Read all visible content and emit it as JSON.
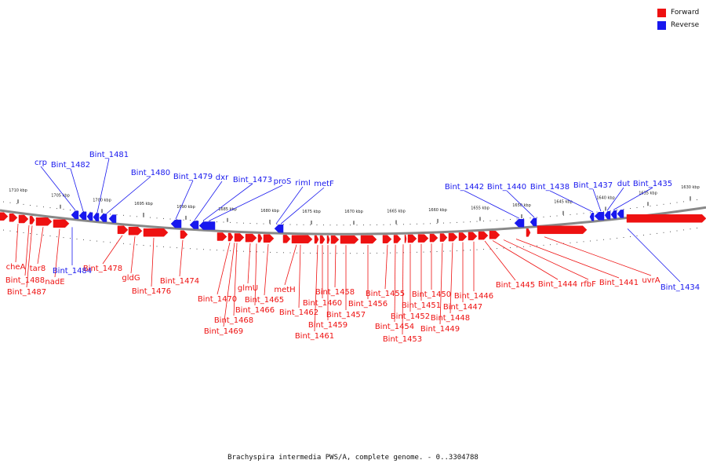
{
  "colors": {
    "forward": "#ee1111",
    "reverse": "#1818ee",
    "backbone": "#888888"
  },
  "legend": [
    {
      "label": "Forward",
      "color": "#ee1111"
    },
    {
      "label": "Reverse",
      "color": "#1818ee"
    }
  ],
  "caption": "Brachyspira intermedia PWS/A, complete genome. - 0..3304788",
  "ticks": [
    "1710 kbp",
    "1705 kbp",
    "1700 kbp",
    "1695 kbp",
    "1690 kbp",
    "1685 kbp",
    "1680 kbp",
    "1675 kbp",
    "1670 kbp",
    "1665 kbp",
    "1660 kbp",
    "1655 kbp",
    "1650 kbp",
    "1645 kbp",
    "1640 kbp",
    "1635 kbp",
    "1630 kbp"
  ],
  "forward_labels": [
    "cheA",
    "Bint_1488",
    "Bint_1487",
    "tar8",
    "nadE",
    "Bint_1478",
    "gldG",
    "Bint_1476",
    "Bint_1474",
    "Bint_1470",
    "Bint_1469",
    "Bint_1468",
    "glmU",
    "Bint_1466",
    "Bint_1465",
    "metH",
    "Bint_1462",
    "Bint_1461",
    "Bint_1460",
    "Bint_1459",
    "Bint_1458",
    "Bint_1457",
    "Bint_1456",
    "Bint_1455",
    "Bint_1454",
    "Bint_1453",
    "Bint_1452",
    "Bint_1451",
    "Bint_1450",
    "Bint_1449",
    "Bint_1448",
    "Bint_1447",
    "Bint_1446",
    "Bint_1445",
    "Bint_1444",
    "rfbF",
    "Bint_1441",
    "uvrA"
  ],
  "reverse_labels": [
    "crp",
    "Bint_1482",
    "Bint_1481",
    "Bint_1480",
    "Bint_1479",
    "dxr",
    "Bint_1473",
    "proS",
    "rimI",
    "metF",
    "Bint_1442",
    "Bint_1440",
    "Bint_1438",
    "Bint_1437",
    "dut",
    "Bint_1435",
    "Bint_1484",
    "Bint_1434"
  ]
}
